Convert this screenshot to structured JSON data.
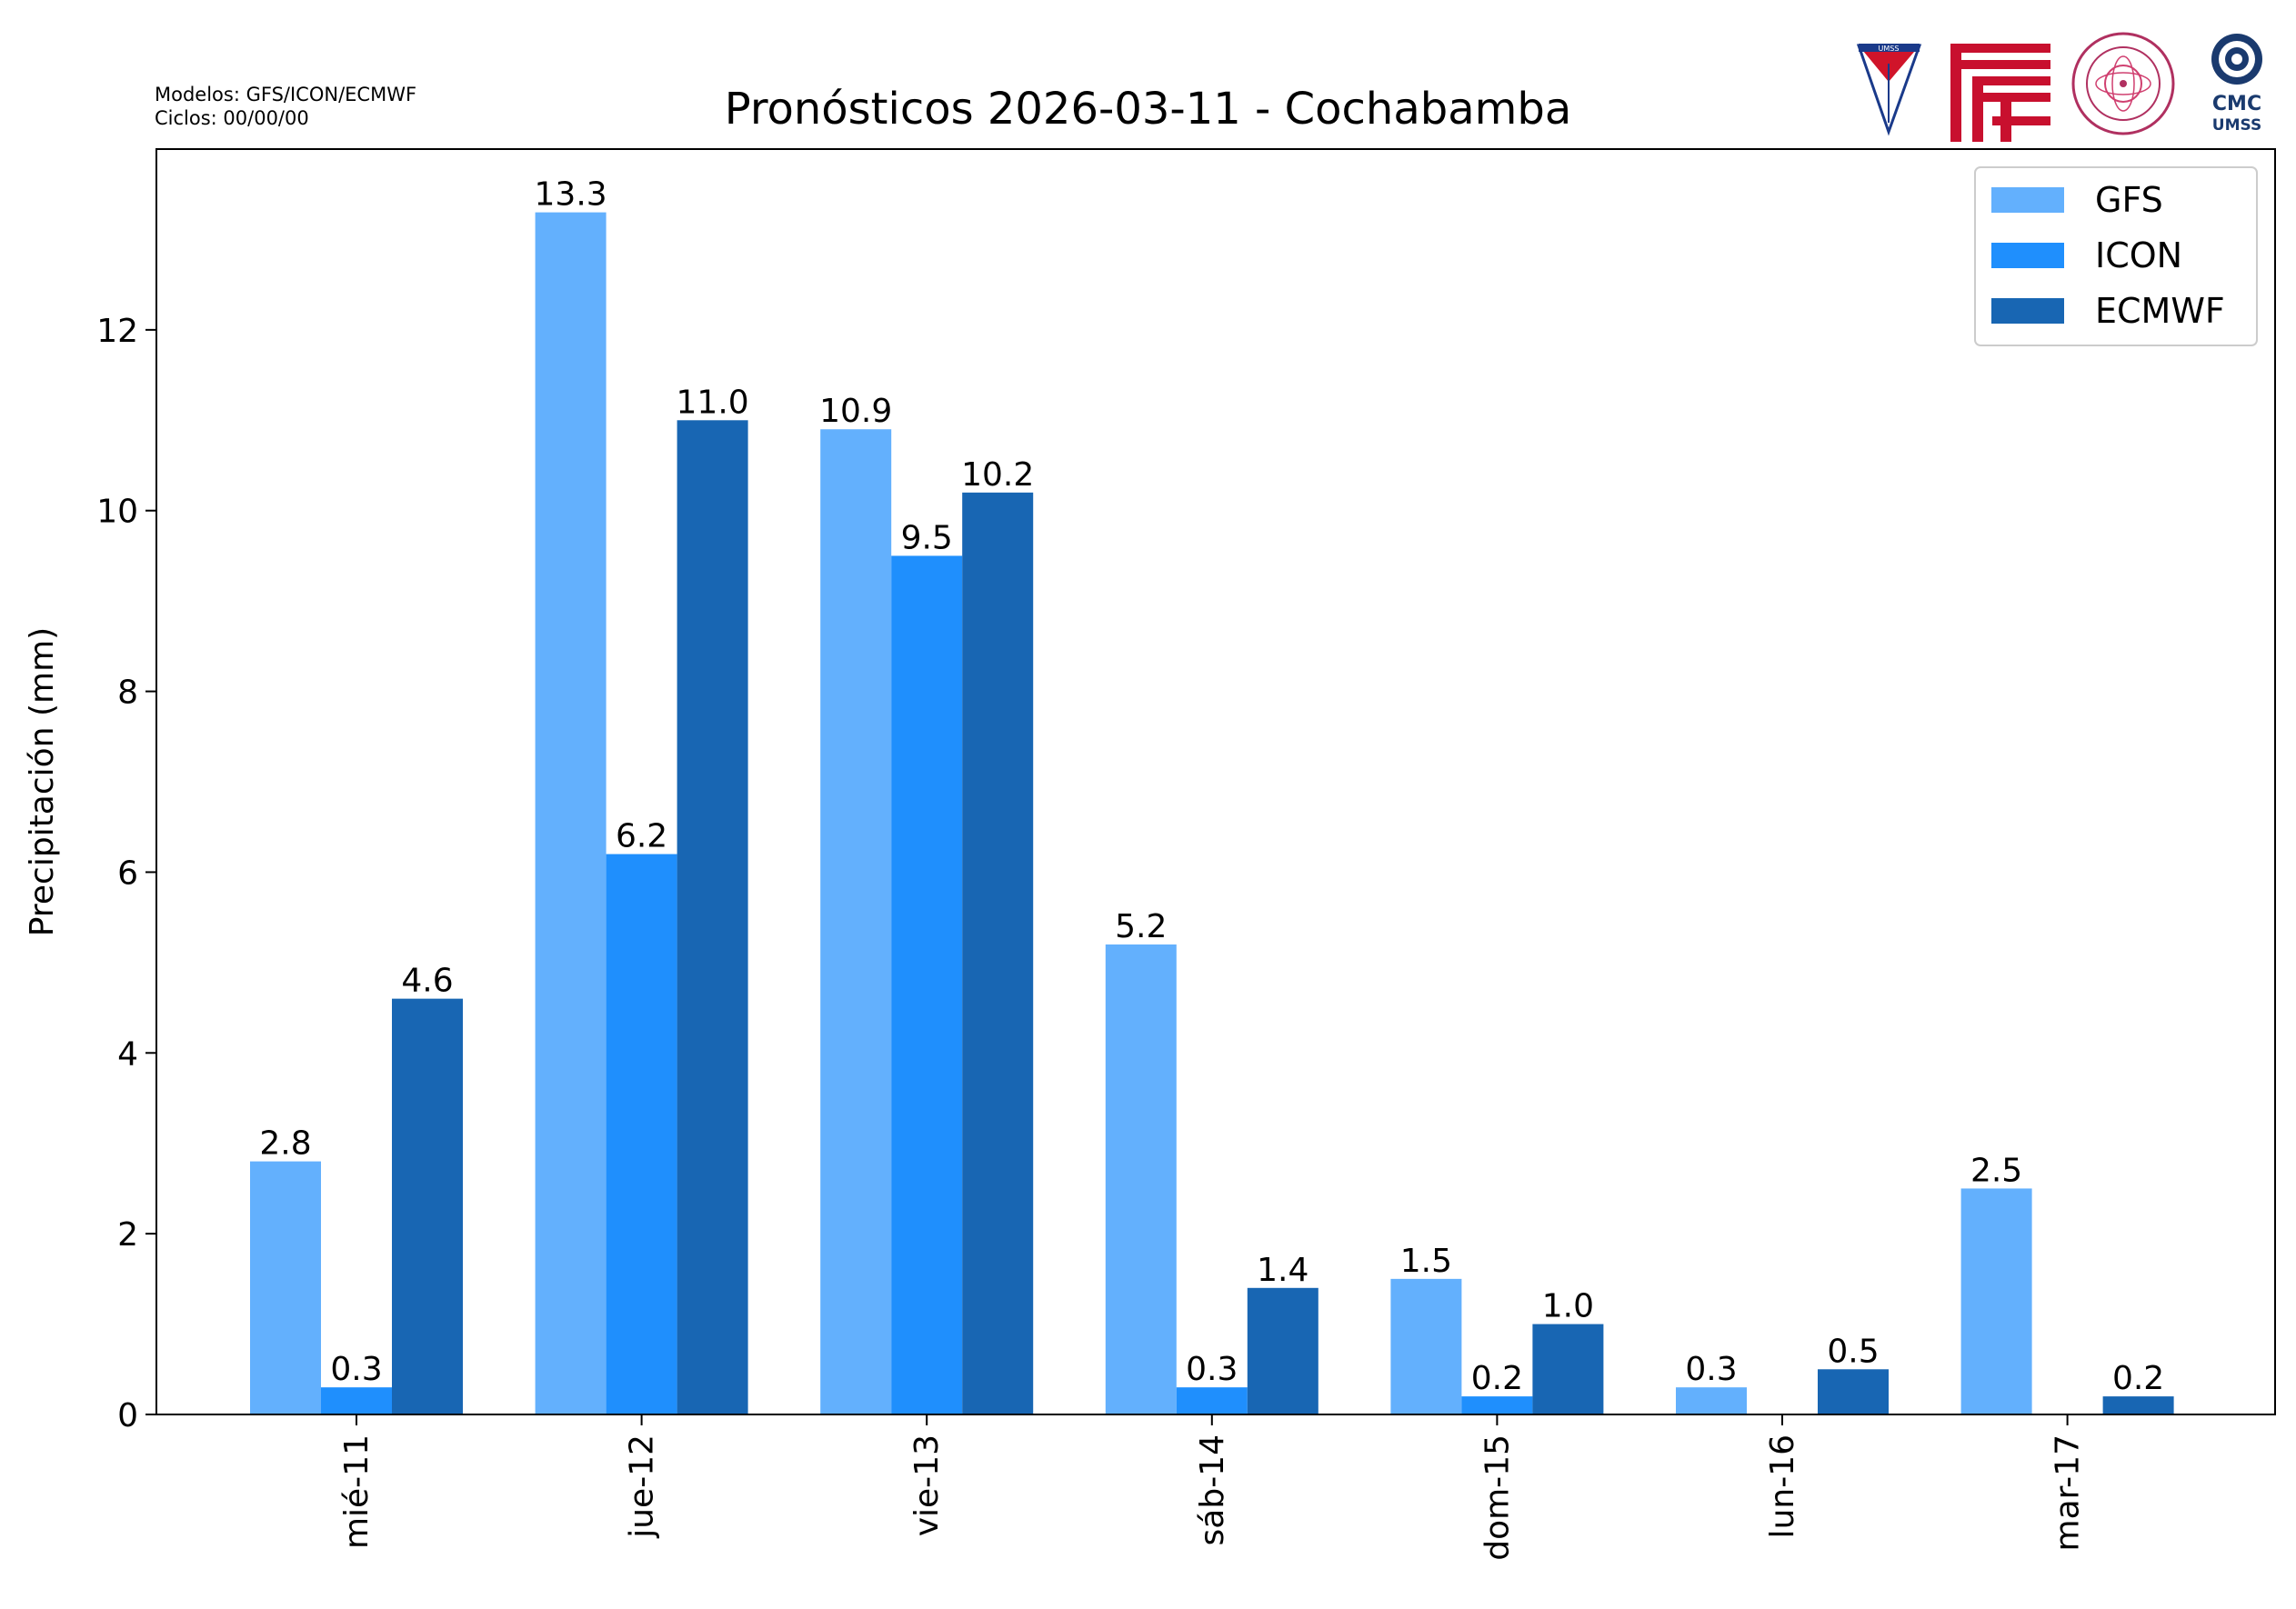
{
  "header": {
    "title": "Pronósticos 2026-03-11 - Cochabamba",
    "models_line": "Modelos: GFS/ICON/ECMWF",
    "cycles_line": "Ciclos: 00/00/00"
  },
  "logos": {
    "umss_shield_text": "UMSS",
    "cmc_line1": "CMC",
    "cmc_line2": "UMSS"
  },
  "chart_data": {
    "type": "bar",
    "title": "Pronósticos 2026-03-11 - Cochabamba",
    "xlabel": "",
    "ylabel": "Precipitación (mm)",
    "categories": [
      "mié-11",
      "jue-12",
      "vie-13",
      "sáb-14",
      "dom-15",
      "lun-16",
      "mar-17"
    ],
    "series": [
      {
        "name": "GFS",
        "color": "#63b0fd",
        "values": [
          2.8,
          13.3,
          10.9,
          5.2,
          1.5,
          0.3,
          2.5
        ]
      },
      {
        "name": "ICON",
        "color": "#1f8ffd",
        "values": [
          0.3,
          6.2,
          9.5,
          0.3,
          0.2,
          0.0,
          0.0
        ]
      },
      {
        "name": "ECMWF",
        "color": "#1866b3",
        "values": [
          4.6,
          11.0,
          10.2,
          1.4,
          1.0,
          0.5,
          0.2
        ]
      }
    ],
    "ylim": [
      0,
      14
    ],
    "yticks": [
      0,
      2,
      4,
      6,
      8,
      10,
      12
    ],
    "grid": false,
    "legend": "top-right",
    "data_labels": true
  }
}
